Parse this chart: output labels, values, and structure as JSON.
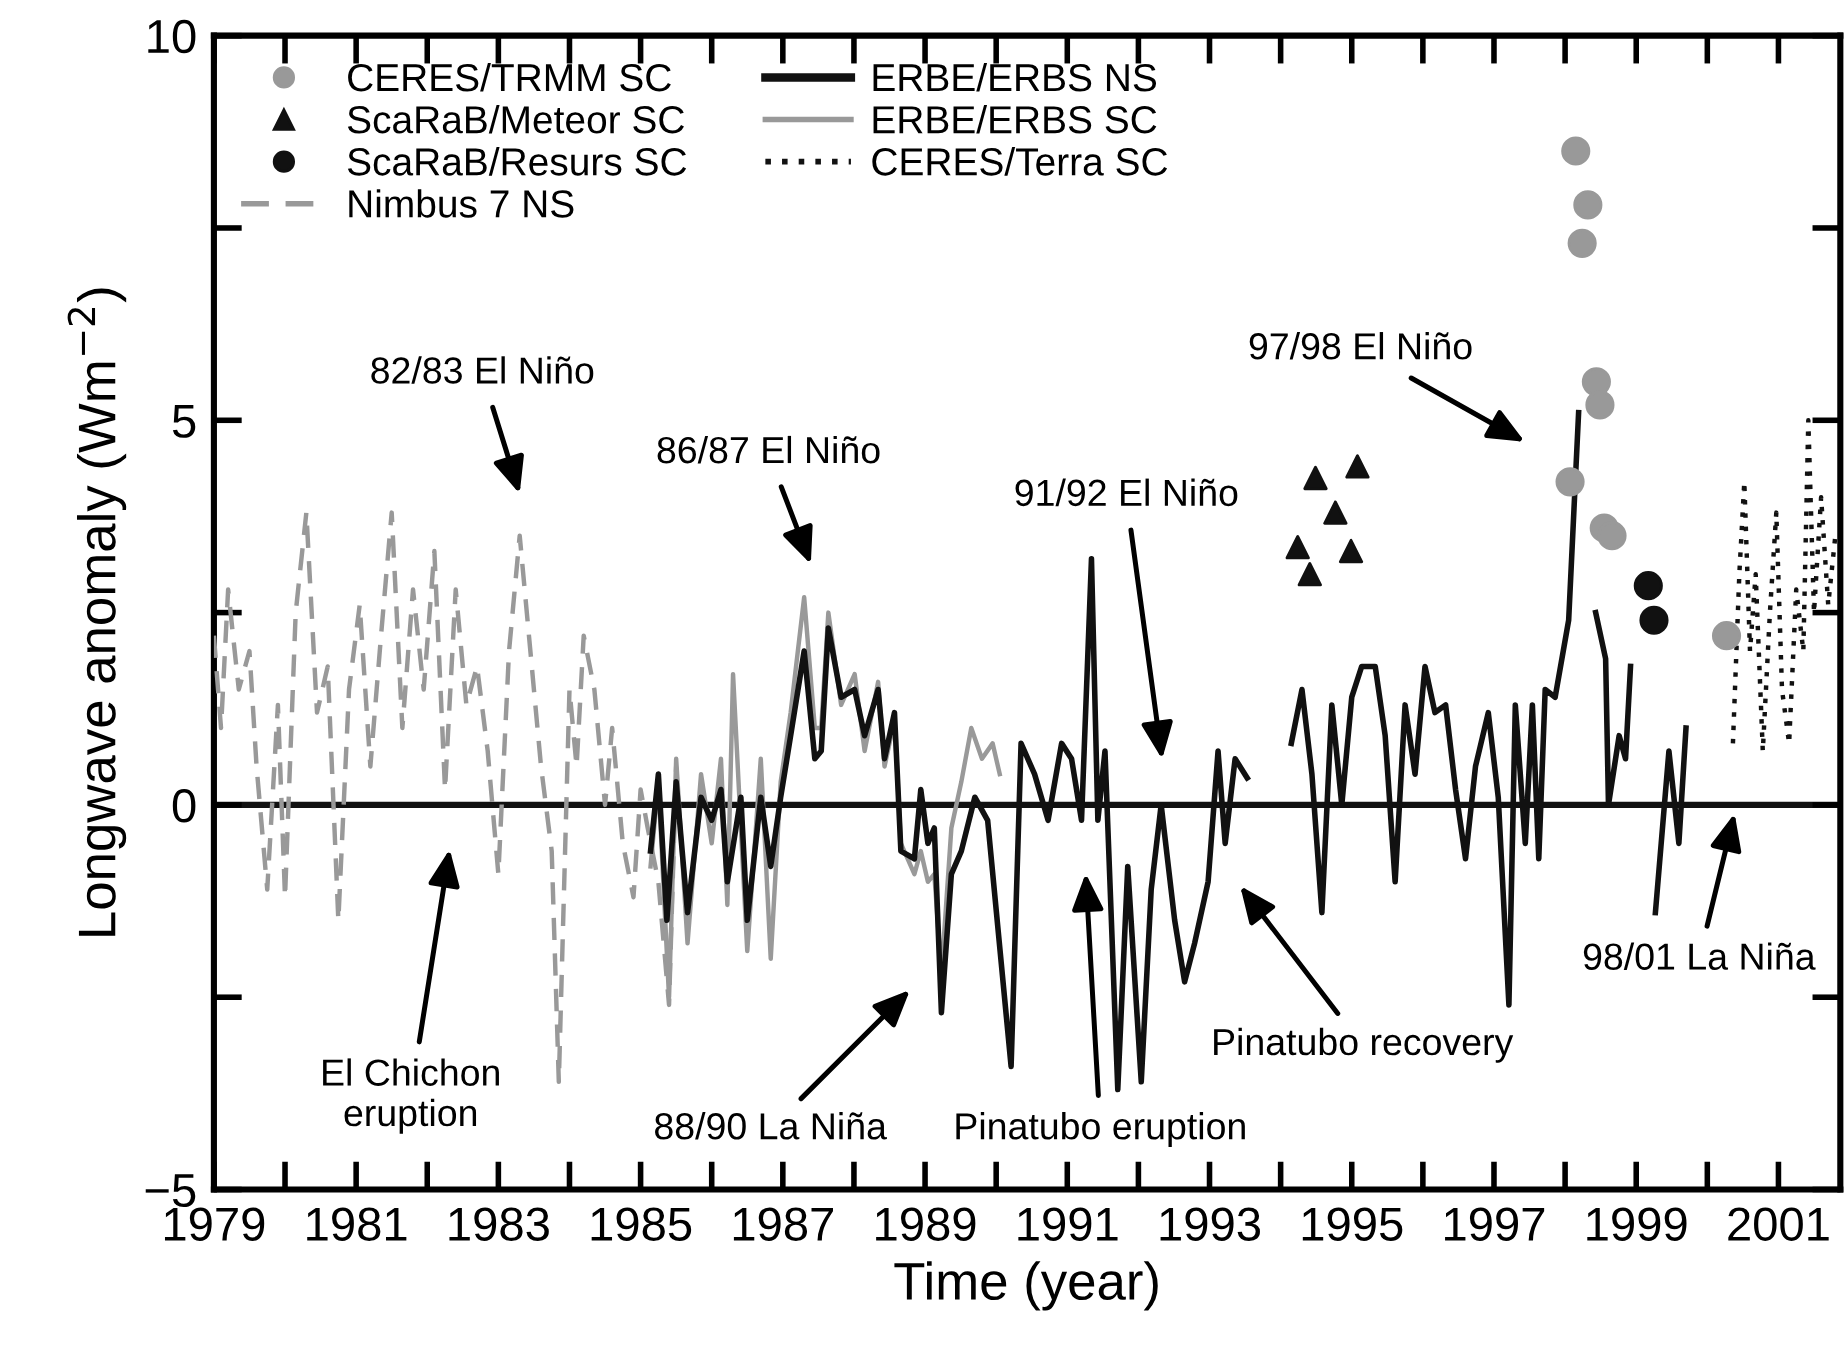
{
  "chart_data": {
    "type": "line",
    "xlabel": "Time (year)",
    "ylabel": "Longwave anomaly (Wm$^{−2}$)",
    "xlim": [
      1979,
      2001.87
    ],
    "ylim": [
      -5,
      10
    ],
    "xticks": [
      1979,
      {
        "value": 1980,
        "label": null
      },
      1981,
      {
        "value": 1982,
        "label": null
      },
      1983,
      {
        "value": 1984,
        "label": null
      },
      1985,
      {
        "value": 1986,
        "label": null
      },
      1987,
      {
        "value": 1988,
        "label": null
      },
      1989,
      {
        "value": 1990,
        "label": null
      },
      1991,
      {
        "value": 1992,
        "label": null
      },
      1993,
      {
        "value": 1994,
        "label": null
      },
      1995,
      {
        "value": 1996,
        "label": null
      },
      1997,
      {
        "value": 1998,
        "label": null
      },
      1999,
      {
        "value": 2000,
        "label": null
      },
      2001
    ],
    "yticks": [
      -5,
      {
        "value": -2.5,
        "label": null
      },
      0,
      {
        "value": 2.5,
        "label": null
      },
      5,
      {
        "value": 7.5,
        "label": null
      },
      10
    ],
    "legend": "top left",
    "grid": false,
    "ref_lines": [
      {
        "axis": "y",
        "value": 0,
        "color": "#111111",
        "line_style": "solid"
      }
    ],
    "series": [
      {
        "name": "CERES/TRMM SC",
        "type": "scatter",
        "marker": "circle",
        "color": "#999999",
        "x": [
          1998.15,
          1998.32,
          1998.24,
          1998.44,
          1998.49,
          1998.07,
          1998.55,
          1998.66,
          2000.27
        ],
        "values": [
          8.5,
          7.8,
          7.3,
          5.5,
          5.2,
          4.2,
          3.6,
          3.5,
          2.2
        ]
      },
      {
        "name": "ScaRaB/Meteor SC",
        "type": "scatter",
        "marker": "triangle",
        "color": "#111111",
        "x": [
          1994.49,
          1995.08,
          1994.77,
          1994.24,
          1994.99,
          1994.41
        ],
        "values": [
          4.25,
          4.4,
          3.8,
          3.35,
          3.3,
          3.0
        ]
      },
      {
        "name": "ScaRaB/Resurs SC",
        "type": "scatter",
        "marker": "circle",
        "color": "#111111",
        "x": [
          1999.17,
          1999.25
        ],
        "values": [
          2.85,
          2.4
        ]
      },
      {
        "name": "Nimbus 7 NS",
        "line_style": "dashed",
        "color": "#999999",
        "x": [
          1979.0,
          1979.1,
          1979.2,
          1979.35,
          1979.5,
          1979.6,
          1979.75,
          1979.9,
          1980.0,
          1980.15,
          1980.3,
          1980.45,
          1980.6,
          1980.75,
          1980.9,
          1981.05,
          1981.2,
          1981.35,
          1981.5,
          1981.65,
          1981.8,
          1981.95,
          1982.1,
          1982.25,
          1982.4,
          1982.55,
          1982.7,
          1982.85,
          1983.0,
          1983.15,
          1983.3,
          1983.45,
          1983.6,
          1983.75,
          1983.85,
          1984.0,
          1984.1,
          1984.2,
          1984.35,
          1984.5,
          1984.6,
          1984.75,
          1984.9,
          1985.0,
          1985.1,
          1985.25,
          1985.4,
          1985.5
        ],
        "values": [
          2.2,
          1.0,
          2.8,
          1.5,
          2.0,
          0.5,
          -1.1,
          1.3,
          -1.2,
          2.5,
          3.8,
          1.2,
          1.8,
          -1.5,
          1.5,
          2.6,
          0.5,
          2.2,
          3.8,
          1.0,
          2.8,
          1.5,
          3.3,
          0.2,
          2.8,
          1.3,
          1.8,
          0.7,
          -0.9,
          2.0,
          3.5,
          2.0,
          0.5,
          -0.6,
          -3.6,
          1.5,
          0.5,
          2.2,
          1.5,
          0.0,
          1.0,
          -0.5,
          -1.2,
          0.2,
          -0.3,
          -1.0,
          -2.6,
          0.5
        ]
      },
      {
        "name": "ERBE/ERBS NS",
        "line_style": "solid",
        "color": "#111111",
        "x": [
          1985.14,
          1985.25,
          1985.37,
          1985.5,
          1985.66,
          1985.85,
          1986.0,
          1986.13,
          1986.22,
          1986.41,
          1986.5,
          1986.69,
          1986.83,
          1986.97,
          1987.11,
          1987.3,
          1987.45,
          1987.54,
          1987.64,
          1987.82,
          1988.01,
          1988.15,
          1988.34,
          1988.43,
          1988.57,
          1988.66,
          1988.85,
          1988.94,
          1989.04,
          1989.13,
          1989.23,
          1989.37,
          1989.51,
          1989.7,
          1989.88,
          1990.21,
          1990.35,
          1990.54,
          1990.73,
          1990.92,
          1991.06,
          1991.2,
          1991.34,
          1991.43,
          1991.53,
          1991.71,
          1991.85,
          1992.04,
          1992.18,
          1992.32,
          1992.51,
          1992.65,
          1992.79,
          1992.98,
          1993.12,
          1993.22,
          1993.36,
          1993.53,
          1993.8,
          1994.15,
          1994.3,
          1994.44,
          1994.58,
          1994.72,
          1994.86,
          1995.0,
          1995.14,
          1995.33,
          1995.47,
          1995.61,
          1995.75,
          1995.89,
          1996.03,
          1996.17,
          1996.32,
          1996.46,
          1996.6,
          1996.74,
          1996.92,
          1997.06,
          1997.21,
          1997.3,
          1997.44,
          1997.54,
          1997.63,
          1997.72,
          1997.86,
          1998.05,
          1998.19,
          1998.3,
          1998.43,
          1998.57,
          1998.61,
          1998.76,
          1998.85,
          1998.92,
          1999.1,
          1999.27,
          1999.46,
          1999.6,
          1999.7
        ],
        "values": [
          -0.6,
          0.4,
          -1.5,
          0.3,
          -1.4,
          0.1,
          -0.2,
          0.2,
          -1.0,
          0.1,
          -1.5,
          0.1,
          -0.8,
          0.1,
          0.9,
          2.0,
          0.6,
          0.7,
          2.3,
          1.4,
          1.5,
          0.9,
          1.5,
          0.6,
          1.2,
          -0.6,
          -0.7,
          0.2,
          -0.5,
          -0.3,
          -2.7,
          -0.9,
          -0.6,
          0.1,
          -0.2,
          -3.4,
          0.8,
          0.4,
          -0.2,
          0.8,
          0.6,
          -0.2,
          3.2,
          -0.2,
          0.7,
          -3.7,
          -0.8,
          -3.6,
          -1.1,
          0.0,
          -1.5,
          -2.3,
          -1.8,
          -1.0,
          0.7,
          -0.5,
          0.6,
          0.35,
          null,
          0.8,
          1.5,
          0.4,
          -1.4,
          1.3,
          0.0,
          1.4,
          1.8,
          1.8,
          0.9,
          -1.0,
          1.3,
          0.4,
          1.8,
          1.2,
          1.3,
          0.2,
          -0.7,
          0.5,
          1.2,
          0.1,
          -2.6,
          1.3,
          -0.5,
          1.3,
          -0.7,
          1.5,
          1.4,
          2.4,
          5.1,
          null,
          2.5,
          1.9,
          0.0,
          0.9,
          0.6,
          1.8,
          null,
          -1.4,
          0.7,
          -0.5,
          1.0
        ]
      },
      {
        "name": "ERBE/ERBS SC",
        "line_style": "solid",
        "color": "#999999",
        "x": [
          1985.14,
          1985.25,
          1985.4,
          1985.5,
          1985.66,
          1985.85,
          1986.0,
          1986.13,
          1986.22,
          1986.3,
          1986.41,
          1986.5,
          1986.69,
          1986.83,
          1986.97,
          1987.11,
          1987.3,
          1987.45,
          1987.54,
          1987.64,
          1987.82,
          1988.01,
          1988.15,
          1988.34,
          1988.43,
          1988.57,
          1988.66,
          1988.85,
          1988.94,
          1989.04,
          1989.13,
          1989.23,
          1989.37,
          1989.51,
          1989.65,
          1989.8,
          1989.95,
          1990.05
        ],
        "values": [
          -0.8,
          0.3,
          -2.5,
          0.6,
          -1.8,
          0.4,
          -0.5,
          0.6,
          -1.3,
          1.7,
          -0.3,
          -1.9,
          0.6,
          -2.0,
          0.3,
          1.2,
          2.7,
          1.0,
          1.0,
          2.5,
          1.3,
          1.7,
          0.7,
          1.6,
          0.5,
          1.1,
          -0.5,
          -0.9,
          -0.6,
          -1.0,
          -0.9,
          -2.2,
          -0.3,
          0.3,
          1.0,
          0.6,
          0.8,
          0.4
        ]
      },
      {
        "name": "CERES/Terra SC",
        "line_style": "dotted",
        "color": "#111111",
        "x": [
          2000.36,
          2000.45,
          2000.52,
          2000.6,
          2000.68,
          2000.78,
          2000.88,
          2000.97,
          2001.05,
          2001.15,
          2001.25,
          2001.35,
          2001.42,
          2001.5,
          2001.6,
          2001.7,
          2001.8
        ],
        "values": [
          0.8,
          3.0,
          4.2,
          2.0,
          3.0,
          0.7,
          2.5,
          3.8,
          1.5,
          0.8,
          2.8,
          2.0,
          5.0,
          2.5,
          4.0,
          2.6,
          3.5
        ]
      }
    ],
    "annotations": [
      "82/83 El Niño",
      "86/87 El Niño",
      "91/92 El Niño",
      "97/98 El Niño",
      "El Chichon\neruption",
      "88/90 La Niña",
      "Pinatubo eruption",
      "Pinatubo recovery",
      "98/01 La Niña"
    ]
  }
}
